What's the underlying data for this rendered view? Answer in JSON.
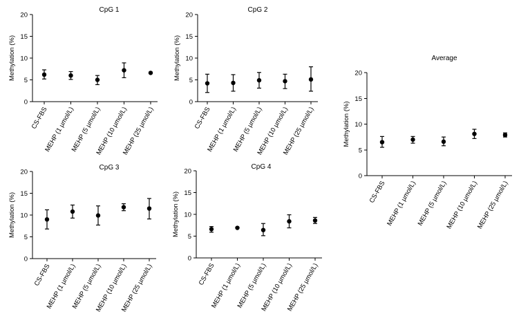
{
  "chart_data": [
    {
      "id": "cpg1",
      "type": "scatter",
      "title": "CpG 1",
      "xlabel": "",
      "ylabel": "Methylation (%)",
      "ylim": [
        0,
        20
      ],
      "yticks": [
        0,
        5,
        10,
        15,
        20
      ],
      "categories": [
        "CS-FBS",
        "MEHP (1 µmol/L)",
        "MEHP (5 µmol/L)",
        "MEHP (10 µmol/L)",
        "MEHP (25 µmol/L)"
      ],
      "values": [
        6.2,
        6.0,
        5.0,
        7.2,
        6.6
      ],
      "error_low": [
        5.2,
        5.1,
        3.9,
        5.5,
        6.5
      ],
      "error_high": [
        7.3,
        6.9,
        6.0,
        8.9,
        6.7
      ]
    },
    {
      "id": "cpg2",
      "type": "scatter",
      "title": "CpG 2",
      "xlabel": "",
      "ylabel": "Methylation (%)",
      "ylim": [
        0,
        20
      ],
      "yticks": [
        0,
        5,
        10,
        15,
        20
      ],
      "categories": [
        "CS-FBS",
        "MEHP (1 µmol/L)",
        "MEHP (5 µmol/L)",
        "MEHP (10 µmol/L)",
        "MEHP (25 µmol/L)"
      ],
      "values": [
        4.2,
        4.3,
        4.9,
        4.7,
        5.1
      ],
      "error_low": [
        2.1,
        2.4,
        3.1,
        3.0,
        2.4
      ],
      "error_high": [
        6.3,
        6.2,
        6.7,
        6.3,
        8.0
      ]
    },
    {
      "id": "cpg3",
      "type": "scatter",
      "title": "CpG 3",
      "xlabel": "",
      "ylabel": "Methylation (%)",
      "ylim": [
        0,
        20
      ],
      "yticks": [
        0,
        5,
        10,
        15,
        20
      ],
      "categories": [
        "CS-FBS",
        "MEHP (1 µmol/L)",
        "MEHP (5 µmol/L)",
        "MEHP (10 µmol/L)",
        "MEHP (25 µmol/L)"
      ],
      "values": [
        9.0,
        10.8,
        9.9,
        11.8,
        11.5
      ],
      "error_low": [
        6.8,
        9.3,
        7.7,
        11.0,
        9.1
      ],
      "error_high": [
        11.2,
        12.3,
        12.1,
        12.6,
        13.8
      ]
    },
    {
      "id": "cpg4",
      "type": "scatter",
      "title": "CpG 4",
      "xlabel": "",
      "ylabel": "Methylation (%)",
      "ylim": [
        0,
        20
      ],
      "yticks": [
        0,
        5,
        10,
        15,
        20
      ],
      "categories": [
        "CS-FBS",
        "MEHP (1 µmol/L)",
        "MEHP (5 µmol/L)",
        "MEHP (10 µmol/L)",
        "MEHP (25 µmol/L)"
      ],
      "values": [
        6.6,
        6.9,
        6.4,
        8.4,
        8.6
      ],
      "error_low": [
        5.9,
        6.8,
        5.1,
        6.9,
        7.9
      ],
      "error_high": [
        7.2,
        7.0,
        7.9,
        9.9,
        9.3
      ]
    },
    {
      "id": "average",
      "type": "scatter",
      "title": "Average",
      "xlabel": "",
      "ylabel": "Methylation (%)",
      "ylim": [
        0,
        20
      ],
      "yticks": [
        0,
        5,
        10,
        15,
        20
      ],
      "categories": [
        "CS-FBS",
        "MEHP (1 µmol/L)",
        "MEHP (5 µmol/L)",
        "MEHP (10 µmol/L)",
        "MEHP (25 µmol/L)"
      ],
      "values": [
        6.5,
        7.0,
        6.6,
        8.1,
        7.9
      ],
      "error_low": [
        5.5,
        6.3,
        5.8,
        7.2,
        7.5
      ],
      "error_high": [
        7.6,
        7.6,
        7.5,
        9.0,
        8.3
      ]
    }
  ]
}
